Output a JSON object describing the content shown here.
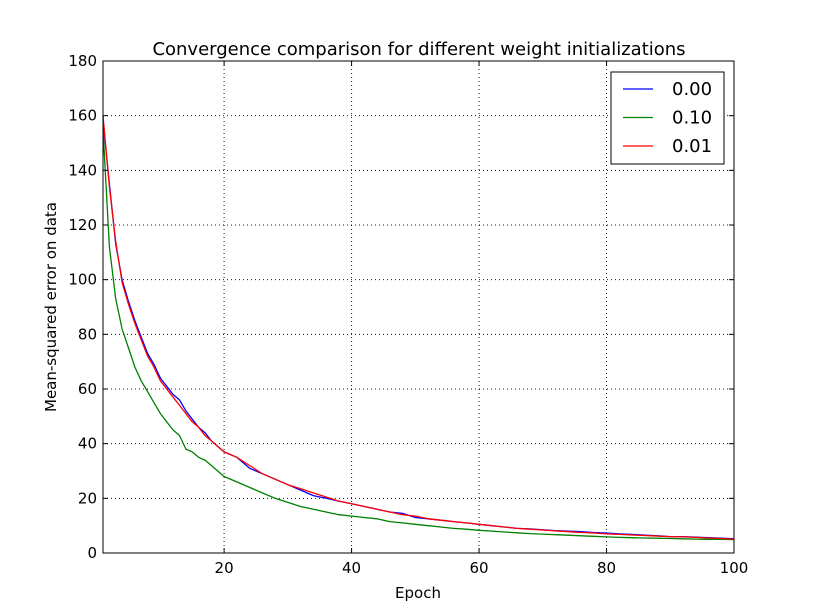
{
  "chart_data": {
    "type": "line",
    "title": "Convergence comparison for different weight initializations",
    "xlabel": "Epoch",
    "ylabel": "Mean-squared error on data",
    "xlim": [
      1,
      100
    ],
    "ylim": [
      0,
      180
    ],
    "xticks": [
      20,
      40,
      60,
      80,
      100
    ],
    "yticks": [
      0,
      20,
      40,
      60,
      80,
      100,
      120,
      140,
      160,
      180
    ],
    "grid": true,
    "legend_position": "top-right",
    "series": [
      {
        "name": "0.00",
        "color": "#0000ff",
        "x": [
          1,
          2,
          3,
          4,
          5,
          6,
          7,
          8,
          9,
          10,
          11,
          12,
          13,
          14,
          15,
          16,
          17,
          18,
          19,
          20,
          22,
          24,
          26,
          28,
          30,
          32,
          34,
          36,
          38,
          40,
          42,
          44,
          46,
          48,
          50,
          52,
          54,
          56,
          58,
          60,
          62,
          64,
          66,
          68,
          70,
          72,
          74,
          76,
          78,
          80,
          82,
          84,
          86,
          88,
          90,
          92,
          94,
          96,
          98,
          100
        ],
        "y": [
          158,
          135,
          113,
          100,
          92,
          85,
          79,
          73,
          69,
          64,
          61,
          58,
          56,
          52,
          49,
          46,
          44,
          41,
          39,
          37,
          35,
          31,
          29,
          27,
          25,
          23,
          21,
          20,
          19,
          18,
          17,
          16,
          15,
          14.5,
          13,
          12.5,
          12,
          11.5,
          11,
          10.5,
          10,
          9.5,
          9,
          8.8,
          8.5,
          8.2,
          8,
          7.8,
          7.5,
          7.3,
          7,
          6.8,
          6.5,
          6.3,
          6,
          6,
          5.8,
          5.6,
          5.4,
          5.2
        ]
      },
      {
        "name": "0.10",
        "color": "#008000",
        "x": [
          1,
          2,
          3,
          4,
          5,
          6,
          7,
          8,
          9,
          10,
          11,
          12,
          13,
          14,
          15,
          16,
          17,
          18,
          19,
          20,
          22,
          24,
          26,
          28,
          30,
          32,
          34,
          36,
          38,
          40,
          42,
          44,
          46,
          48,
          50,
          52,
          54,
          56,
          58,
          60,
          62,
          64,
          66,
          68,
          70,
          72,
          74,
          76,
          78,
          80,
          82,
          84,
          86,
          88,
          90,
          92,
          94,
          96,
          98,
          100
        ],
        "y": [
          155,
          112,
          93,
          82,
          75,
          68,
          63,
          59,
          55,
          51,
          48,
          45,
          43,
          38,
          37,
          35,
          34,
          32,
          30,
          28,
          26,
          24,
          22,
          20,
          18.5,
          17,
          16,
          15,
          14,
          13.5,
          13,
          12.5,
          11.5,
          11,
          10.5,
          10,
          9.5,
          9,
          8.7,
          8.3,
          8,
          7.7,
          7.4,
          7.1,
          6.9,
          6.7,
          6.5,
          6.3,
          6.1,
          5.9,
          5.7,
          5.6,
          5.5,
          5.4,
          5.3,
          5.2,
          5.1,
          5,
          5,
          4.9
        ]
      },
      {
        "name": "0.01",
        "color": "#ff0000",
        "x": [
          1,
          2,
          3,
          4,
          5,
          6,
          7,
          8,
          9,
          10,
          11,
          12,
          13,
          14,
          15,
          16,
          17,
          18,
          19,
          20,
          22,
          24,
          26,
          28,
          30,
          32,
          34,
          36,
          38,
          40,
          42,
          44,
          46,
          48,
          50,
          52,
          54,
          56,
          58,
          60,
          62,
          64,
          66,
          68,
          70,
          72,
          74,
          76,
          78,
          80,
          82,
          84,
          86,
          88,
          90,
          92,
          94,
          96,
          98,
          100
        ],
        "y": [
          160,
          134,
          114,
          99,
          91,
          84,
          78,
          72,
          68,
          63,
          60,
          57,
          54,
          51,
          48,
          46,
          43,
          41,
          39,
          37,
          35,
          32,
          29,
          27,
          25,
          23.5,
          22,
          20.5,
          19,
          18,
          17,
          16,
          15,
          14,
          13.5,
          12.5,
          12,
          11.5,
          11,
          10.5,
          10,
          9.5,
          9,
          8.7,
          8.4,
          8.1,
          7.8,
          7.5,
          7.3,
          7,
          6.8,
          6.6,
          6.4,
          6.2,
          6,
          5.9,
          5.7,
          5.5,
          5.3,
          5.1
        ]
      }
    ]
  }
}
